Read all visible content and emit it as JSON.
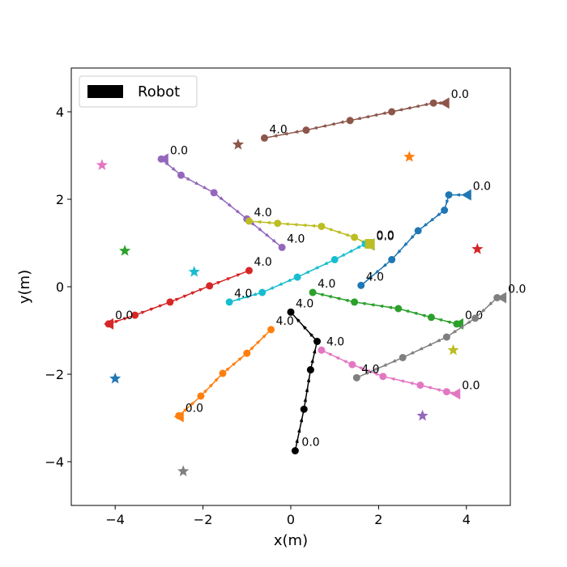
{
  "chart_data": {
    "type": "scatter",
    "xlabel": "x(m)",
    "ylabel": "y(m)",
    "xlim": [
      -5,
      5
    ],
    "ylim": [
      -5,
      5
    ],
    "xticks": [
      -4,
      -2,
      0,
      2,
      4
    ],
    "yticks": [
      -4,
      -2,
      0,
      2,
      4
    ],
    "grid": false,
    "legend": {
      "placement": "top-left",
      "entries": [
        {
          "label": "Robot",
          "color": "#000000"
        }
      ]
    },
    "robot": {
      "name": "Robot",
      "color": "#000000",
      "start_label": "0.0",
      "end_label": "4.0",
      "points": [
        [
          0.1,
          -3.75
        ],
        [
          0.3,
          -2.8
        ],
        [
          0.45,
          -1.9
        ],
        [
          0.6,
          -1.25
        ],
        [
          0.0,
          -0.58
        ]
      ]
    },
    "humans": [
      {
        "color": "#1f77b4",
        "start_label": "0.0",
        "end_label": "4.0",
        "goal": [
          -4.0,
          -2.1
        ],
        "points": [
          [
            4.0,
            2.1
          ],
          [
            3.6,
            2.1
          ],
          [
            3.5,
            1.75
          ],
          [
            2.9,
            1.28
          ],
          [
            2.3,
            0.62
          ],
          [
            1.6,
            0.03
          ]
        ]
      },
      {
        "color": "#ff7f0e",
        "start_label": "0.0",
        "end_label": "4.0",
        "goal": [
          2.7,
          2.97
        ],
        "points": [
          [
            -2.55,
            -2.97
          ],
          [
            -2.55,
            -2.95
          ],
          [
            -2.05,
            -2.5
          ],
          [
            -1.55,
            -1.98
          ],
          [
            -1.0,
            -1.52
          ],
          [
            -0.45,
            -0.98
          ]
        ]
      },
      {
        "color": "#2ca02c",
        "start_label": "0.0",
        "end_label": "4.0",
        "goal": [
          -3.78,
          0.82
        ],
        "points": [
          [
            3.82,
            -0.85
          ],
          [
            3.78,
            -0.85
          ],
          [
            3.2,
            -0.7
          ],
          [
            2.45,
            -0.5
          ],
          [
            1.45,
            -0.35
          ],
          [
            0.5,
            -0.13
          ]
        ]
      },
      {
        "color": "#d62728",
        "start_label": "0.0",
        "end_label": "4.0",
        "goal": [
          4.25,
          0.86
        ],
        "points": [
          [
            -4.15,
            -0.85
          ],
          [
            -4.15,
            -0.85
          ],
          [
            -3.55,
            -0.65
          ],
          [
            -2.75,
            -0.35
          ],
          [
            -1.85,
            0.02
          ],
          [
            -0.95,
            0.37
          ]
        ]
      },
      {
        "color": "#9467bd",
        "start_label": "0.0",
        "end_label": "4.0",
        "goal": [
          3.0,
          -2.95
        ],
        "points": [
          [
            -2.9,
            2.92
          ],
          [
            -2.95,
            2.92
          ],
          [
            -2.5,
            2.55
          ],
          [
            -1.75,
            2.15
          ],
          [
            -1.0,
            1.55
          ],
          [
            -0.2,
            0.9
          ]
        ]
      },
      {
        "color": "#8c564b",
        "start_label": "0.0",
        "end_label": "4.0",
        "goal": [
          -1.2,
          3.25
        ],
        "points": [
          [
            3.5,
            4.2
          ],
          [
            3.25,
            4.2
          ],
          [
            2.3,
            4.0
          ],
          [
            1.35,
            3.8
          ],
          [
            0.35,
            3.58
          ],
          [
            -0.6,
            3.4
          ]
        ]
      },
      {
        "color": "#e377c2",
        "start_label": "0.0",
        "end_label": "4.0",
        "goal": [
          -4.3,
          2.78
        ],
        "points": [
          [
            3.75,
            -2.45
          ],
          [
            3.55,
            -2.4
          ],
          [
            2.95,
            -2.25
          ],
          [
            2.1,
            -2.05
          ],
          [
            1.4,
            -1.78
          ],
          [
            0.7,
            -1.45
          ]
        ]
      },
      {
        "color": "#7f7f7f",
        "start_label": "0.0",
        "end_label": "4.0",
        "goal": [
          -2.45,
          -4.22
        ],
        "points": [
          [
            4.8,
            -0.25
          ],
          [
            4.7,
            -0.25
          ],
          [
            4.2,
            -0.72
          ],
          [
            3.55,
            -1.15
          ],
          [
            2.55,
            -1.62
          ],
          [
            1.5,
            -2.08
          ]
        ]
      },
      {
        "color": "#bcbd22",
        "start_label": "0.0",
        "end_label": "4.0",
        "goal": [
          3.7,
          -1.45
        ],
        "points": [
          [
            1.8,
            0.95
          ],
          [
            1.45,
            1.13
          ],
          [
            0.7,
            1.38
          ],
          [
            -0.3,
            1.45
          ],
          [
            -0.95,
            1.5
          ]
        ]
      },
      {
        "color": "#17becf",
        "start_label": "0.0",
        "end_label": "4.0",
        "goal": [
          -2.2,
          0.34
        ],
        "points": [
          [
            1.8,
            0.98
          ],
          [
            1.7,
            0.98
          ],
          [
            1.0,
            0.62
          ],
          [
            0.15,
            0.22
          ],
          [
            -0.65,
            -0.13
          ],
          [
            -1.4,
            -0.35
          ]
        ]
      }
    ]
  }
}
